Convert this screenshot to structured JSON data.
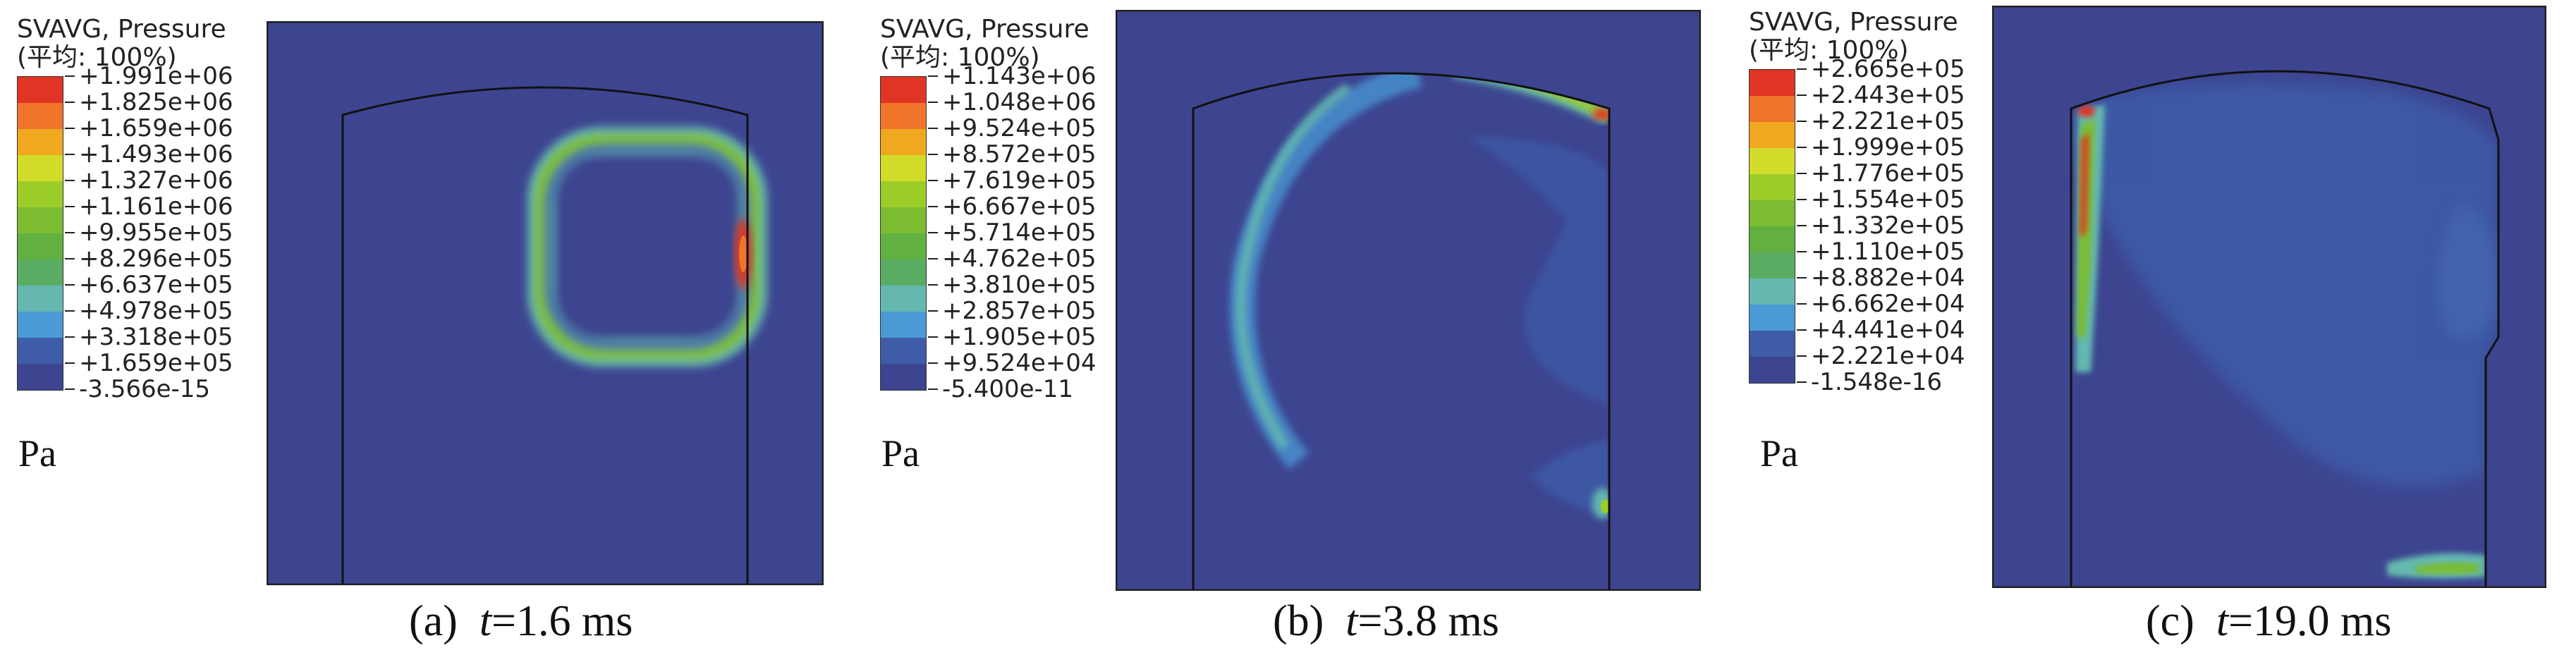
{
  "colors": {
    "background": "#3d4590",
    "scale": [
      "#3d4590",
      "#3e5ca8",
      "#4a9ad6",
      "#64b8b0",
      "#5aac62",
      "#62b040",
      "#7cbc30",
      "#9ccc28",
      "#d2dc2a",
      "#f0a820",
      "#f0742a",
      "#e03424"
    ]
  },
  "panels": [
    {
      "legend_title": "SVAVG, Pressure",
      "legend_subtitle": "(平均: 100%)",
      "levels": [
        "+1.991e+06",
        "+1.825e+06",
        "+1.659e+06",
        "+1.493e+06",
        "+1.327e+06",
        "+1.161e+06",
        "+9.955e+05",
        "+8.296e+05",
        "+6.637e+05",
        "+4.978e+05",
        "+3.318e+05",
        "+1.659e+05",
        "-3.566e-15"
      ],
      "unit": "Pa",
      "caption_label": "(a)",
      "caption_var": "t",
      "caption_value": "=1.6 ms"
    },
    {
      "legend_title": "SVAVG, Pressure",
      "legend_subtitle": "(平均: 100%)",
      "levels": [
        "+1.143e+06",
        "+1.048e+06",
        "+9.524e+05",
        "+8.572e+05",
        "+7.619e+05",
        "+6.667e+05",
        "+5.714e+05",
        "+4.762e+05",
        "+3.810e+05",
        "+2.857e+05",
        "+1.905e+05",
        "+9.524e+04",
        "-5.400e-11"
      ],
      "unit": "Pa",
      "caption_label": "(b)",
      "caption_var": "t",
      "caption_value": "=3.8 ms"
    },
    {
      "legend_title": "SVAVG, Pressure",
      "legend_subtitle": "(平均: 100%)",
      "levels": [
        "+2.665e+05",
        "+2.443e+05",
        "+2.221e+05",
        "+1.999e+05",
        "+1.776e+05",
        "+1.554e+05",
        "+1.332e+05",
        "+1.110e+05",
        "+8.882e+04",
        "+6.662e+04",
        "+4.441e+04",
        "+2.221e+04",
        "-1.548e-16"
      ],
      "unit": "Pa",
      "caption_label": "(c)",
      "caption_var": "t",
      "caption_value": "=19.0 ms"
    }
  ]
}
